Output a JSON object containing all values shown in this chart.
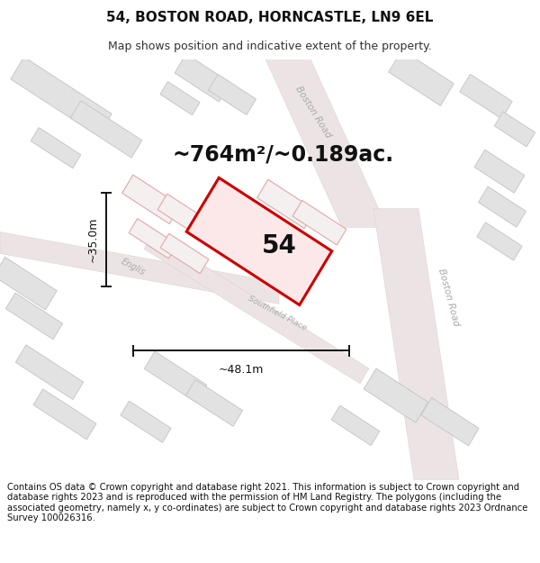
{
  "title": "54, BOSTON ROAD, HORNCASTLE, LN9 6EL",
  "subtitle": "Map shows position and indicative extent of the property.",
  "footer": "Contains OS data © Crown copyright and database right 2021. This information is subject to Crown copyright and database rights 2023 and is reproduced with the permission of HM Land Registry. The polygons (including the associated geometry, namely x, y co-ordinates) are subject to Crown copyright and database rights 2023 Ordnance Survey 100026316.",
  "area_text": "~764m²/~0.189ac.",
  "width_text": "~48.1m",
  "height_text": "~35.0m",
  "property_number": "54",
  "map_bg": "#f2f2f2",
  "building_fill": "#e2e2e2",
  "building_edge_gray": "#c8c8c8",
  "building_fill_red": "#f5f0f0",
  "building_edge_red": "#e0a8a8",
  "road_fill": "#ffffff",
  "property_fill": "#fce8e8",
  "property_edge": "#cc0000",
  "property_edge_width": 2.2,
  "annotation_color": "#111111",
  "road_label_color": "#aaaaaa",
  "title_fontsize": 11,
  "subtitle_fontsize": 9,
  "footer_fontsize": 7.2,
  "area_fontsize": 17,
  "number_fontsize": 20,
  "dim_fontsize": 9
}
